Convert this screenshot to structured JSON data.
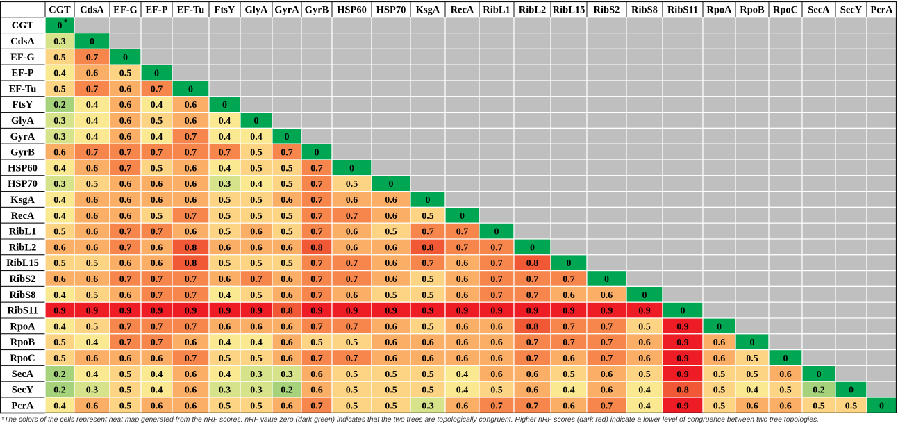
{
  "chart_data": {
    "type": "heatmap",
    "title": "",
    "xlabel": "",
    "ylabel": "",
    "labels": [
      "CGT",
      "CdsA",
      "EF-G",
      "EF-P",
      "EF-Tu",
      "FtsY",
      "GlyA",
      "GyrA",
      "GyrB",
      "HSP60",
      "HSP70",
      "KsgA",
      "RecA",
      "RibL1",
      "RibL2",
      "RibL15",
      "RibS2",
      "RibS8",
      "RibS11",
      "RpoA",
      "RpoB",
      "RpoC",
      "SecA",
      "SecY",
      "PcrA"
    ],
    "diagonal_note": "*",
    "upper_triangle_fill": "#bfbfbf",
    "color_scale": [
      "#00a651",
      "#7ec46a",
      "#c5de86",
      "#fbec94",
      "#fcd181",
      "#fa9c57",
      "#f26a3b",
      "#ee1c24"
    ],
    "values": [
      [
        0
      ],
      [
        0.3,
        0
      ],
      [
        0.5,
        0.7,
        0
      ],
      [
        0.4,
        0.6,
        0.5,
        0
      ],
      [
        0.5,
        0.7,
        0.6,
        0.7,
        0
      ],
      [
        0.2,
        0.4,
        0.6,
        0.4,
        0.6,
        0
      ],
      [
        0.3,
        0.4,
        0.6,
        0.5,
        0.6,
        0.4,
        0
      ],
      [
        0.3,
        0.4,
        0.6,
        0.4,
        0.7,
        0.4,
        0.4,
        0
      ],
      [
        0.6,
        0.7,
        0.7,
        0.7,
        0.7,
        0.7,
        0.5,
        0.7,
        0
      ],
      [
        0.4,
        0.6,
        0.7,
        0.5,
        0.6,
        0.4,
        0.5,
        0.5,
        0.7,
        0
      ],
      [
        0.3,
        0.5,
        0.6,
        0.6,
        0.6,
        0.3,
        0.4,
        0.5,
        0.7,
        0.5,
        0
      ],
      [
        0.4,
        0.6,
        0.6,
        0.6,
        0.6,
        0.5,
        0.5,
        0.6,
        0.7,
        0.6,
        0.6,
        0
      ],
      [
        0.4,
        0.6,
        0.6,
        0.5,
        0.7,
        0.5,
        0.5,
        0.5,
        0.7,
        0.7,
        0.6,
        0.5,
        0
      ],
      [
        0.5,
        0.6,
        0.7,
        0.7,
        0.6,
        0.5,
        0.6,
        0.5,
        0.7,
        0.6,
        0.5,
        0.7,
        0.7,
        0
      ],
      [
        0.6,
        0.6,
        0.7,
        0.6,
        0.8,
        0.6,
        0.6,
        0.6,
        0.8,
        0.6,
        0.6,
        0.8,
        0.7,
        0.7,
        0
      ],
      [
        0.5,
        0.5,
        0.6,
        0.6,
        0.8,
        0.5,
        0.5,
        0.5,
        0.7,
        0.7,
        0.6,
        0.7,
        0.6,
        0.7,
        0.8,
        0
      ],
      [
        0.6,
        0.6,
        0.7,
        0.7,
        0.7,
        0.6,
        0.7,
        0.6,
        0.7,
        0.7,
        0.6,
        0.5,
        0.6,
        0.7,
        0.7,
        0.7,
        0
      ],
      [
        0.4,
        0.5,
        0.6,
        0.7,
        0.7,
        0.4,
        0.5,
        0.6,
        0.7,
        0.6,
        0.5,
        0.5,
        0.6,
        0.7,
        0.7,
        0.6,
        0.6,
        0
      ],
      [
        0.9,
        0.9,
        0.9,
        0.9,
        0.9,
        0.9,
        0.9,
        0.8,
        0.9,
        0.9,
        0.9,
        0.9,
        0.9,
        0.9,
        0.9,
        0.9,
        0.9,
        0.9,
        0
      ],
      [
        0.4,
        0.5,
        0.7,
        0.7,
        0.7,
        0.6,
        0.6,
        0.6,
        0.7,
        0.7,
        0.6,
        0.5,
        0.6,
        0.6,
        0.8,
        0.7,
        0.7,
        0.5,
        0.9,
        0
      ],
      [
        0.5,
        0.4,
        0.7,
        0.7,
        0.6,
        0.4,
        0.4,
        0.6,
        0.5,
        0.5,
        0.6,
        0.6,
        0.6,
        0.6,
        0.7,
        0.7,
        0.7,
        0.6,
        0.9,
        0.6,
        0
      ],
      [
        0.5,
        0.6,
        0.6,
        0.6,
        0.7,
        0.5,
        0.5,
        0.6,
        0.7,
        0.7,
        0.6,
        0.6,
        0.6,
        0.6,
        0.7,
        0.6,
        0.7,
        0.6,
        0.9,
        0.6,
        0.5,
        0
      ],
      [
        0.2,
        0.4,
        0.5,
        0.4,
        0.6,
        0.4,
        0.3,
        0.3,
        0.6,
        0.5,
        0.5,
        0.5,
        0.4,
        0.6,
        0.6,
        0.5,
        0.6,
        0.5,
        0.9,
        0.5,
        0.5,
        0.6,
        0
      ],
      [
        0.2,
        0.3,
        0.5,
        0.4,
        0.6,
        0.3,
        0.3,
        0.2,
        0.6,
        0.5,
        0.5,
        0.5,
        0.4,
        0.5,
        0.6,
        0.4,
        0.6,
        0.4,
        0.8,
        0.5,
        0.4,
        0.5,
        0.2,
        0
      ],
      [
        0.4,
        0.6,
        0.5,
        0.6,
        0.6,
        0.5,
        0.5,
        0.6,
        0.7,
        0.5,
        0.5,
        0.3,
        0.6,
        0.7,
        0.7,
        0.6,
        0.7,
        0.4,
        0.9,
        0.5,
        0.6,
        0.6,
        0.5,
        0.5,
        0
      ]
    ]
  },
  "footnote": "*The colors of the cells represent heat map generated from the nRF scores. nRF value zero (dark green) indicates that the two trees are topologically congruent. Higher nRF scores (dark red) indicate a lower level of congruence between two tree topologies."
}
